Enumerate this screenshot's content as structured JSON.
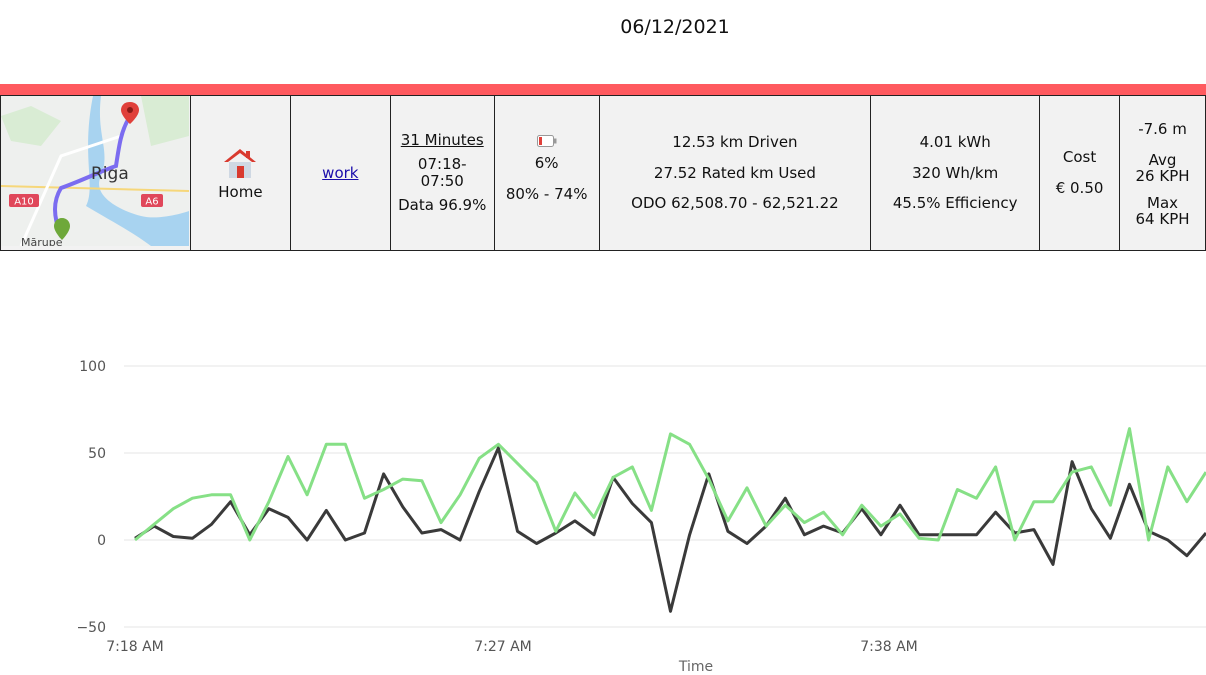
{
  "header": {
    "date": "06/12/2021"
  },
  "colors": {
    "accent_bar": "#ff5a5f",
    "series_dark": "#3a3a3a",
    "series_green": "#86e086",
    "grid": "#e6e6e6"
  },
  "trip": {
    "map": {
      "city_label": "Riga",
      "road_left": "A10",
      "road_right": "A6",
      "district": "Mārupe"
    },
    "start": {
      "icon": "house-icon",
      "label": "Home"
    },
    "destination": {
      "label": "work"
    },
    "duration": {
      "title": "31 Minutes",
      "time_range": "07:18-\n07:50",
      "data": "Data 96.9%"
    },
    "battery": {
      "icon": "battery-low-icon",
      "percent": "6%",
      "range": "80% - 74%"
    },
    "distance": {
      "driven": "12.53 km Driven",
      "rated": "27.52 Rated km Used",
      "odo": "ODO 62,508.70 - 62,521.22"
    },
    "energy": {
      "kwh": "4.01 kWh",
      "per_km": "320 Wh/km",
      "efficiency": "45.5% Efficiency"
    },
    "cost": {
      "label": "Cost",
      "value": "€ 0.50"
    },
    "speed": {
      "elevation": "-7.6 m",
      "avg_label": "Avg",
      "avg_value": "26 KPH",
      "max_label": "Max",
      "max_value": "64 KPH"
    }
  },
  "chart_data": {
    "type": "line",
    "xlabel": "Time",
    "x_ticks": [
      "7:18 AM",
      "7:27 AM",
      "7:38 AM"
    ],
    "y_ticks": [
      "100",
      "50",
      "0",
      "−50"
    ],
    "ylim": [
      -50,
      100
    ],
    "grid": true,
    "series": [
      {
        "color": "#3a3a3a",
        "values": [
          1,
          8,
          2,
          1,
          9,
          22,
          3,
          18,
          13,
          0,
          17,
          0,
          4,
          38,
          19,
          4,
          6,
          0,
          28,
          53,
          5,
          -2,
          4,
          11,
          3,
          36,
          21,
          10,
          -41,
          3,
          38,
          5,
          -2,
          8,
          24,
          3,
          8,
          4,
          18,
          3,
          20,
          3,
          3,
          3,
          3,
          16,
          4,
          6,
          -14,
          45,
          18,
          1,
          32,
          5,
          0,
          -9,
          4
        ]
      },
      {
        "color": "#86e086",
        "values": [
          0,
          9,
          18,
          24,
          26,
          26,
          0,
          22,
          48,
          26,
          55,
          55,
          24,
          29,
          35,
          34,
          10,
          26,
          47,
          55,
          44,
          33,
          5,
          27,
          13,
          36,
          42,
          17,
          61,
          55,
          35,
          11,
          30,
          8,
          20,
          10,
          16,
          3,
          20,
          8,
          15,
          1,
          0,
          29,
          24,
          42,
          0,
          22,
          22,
          39,
          42,
          20,
          64,
          0,
          42,
          22,
          39
        ]
      }
    ]
  }
}
